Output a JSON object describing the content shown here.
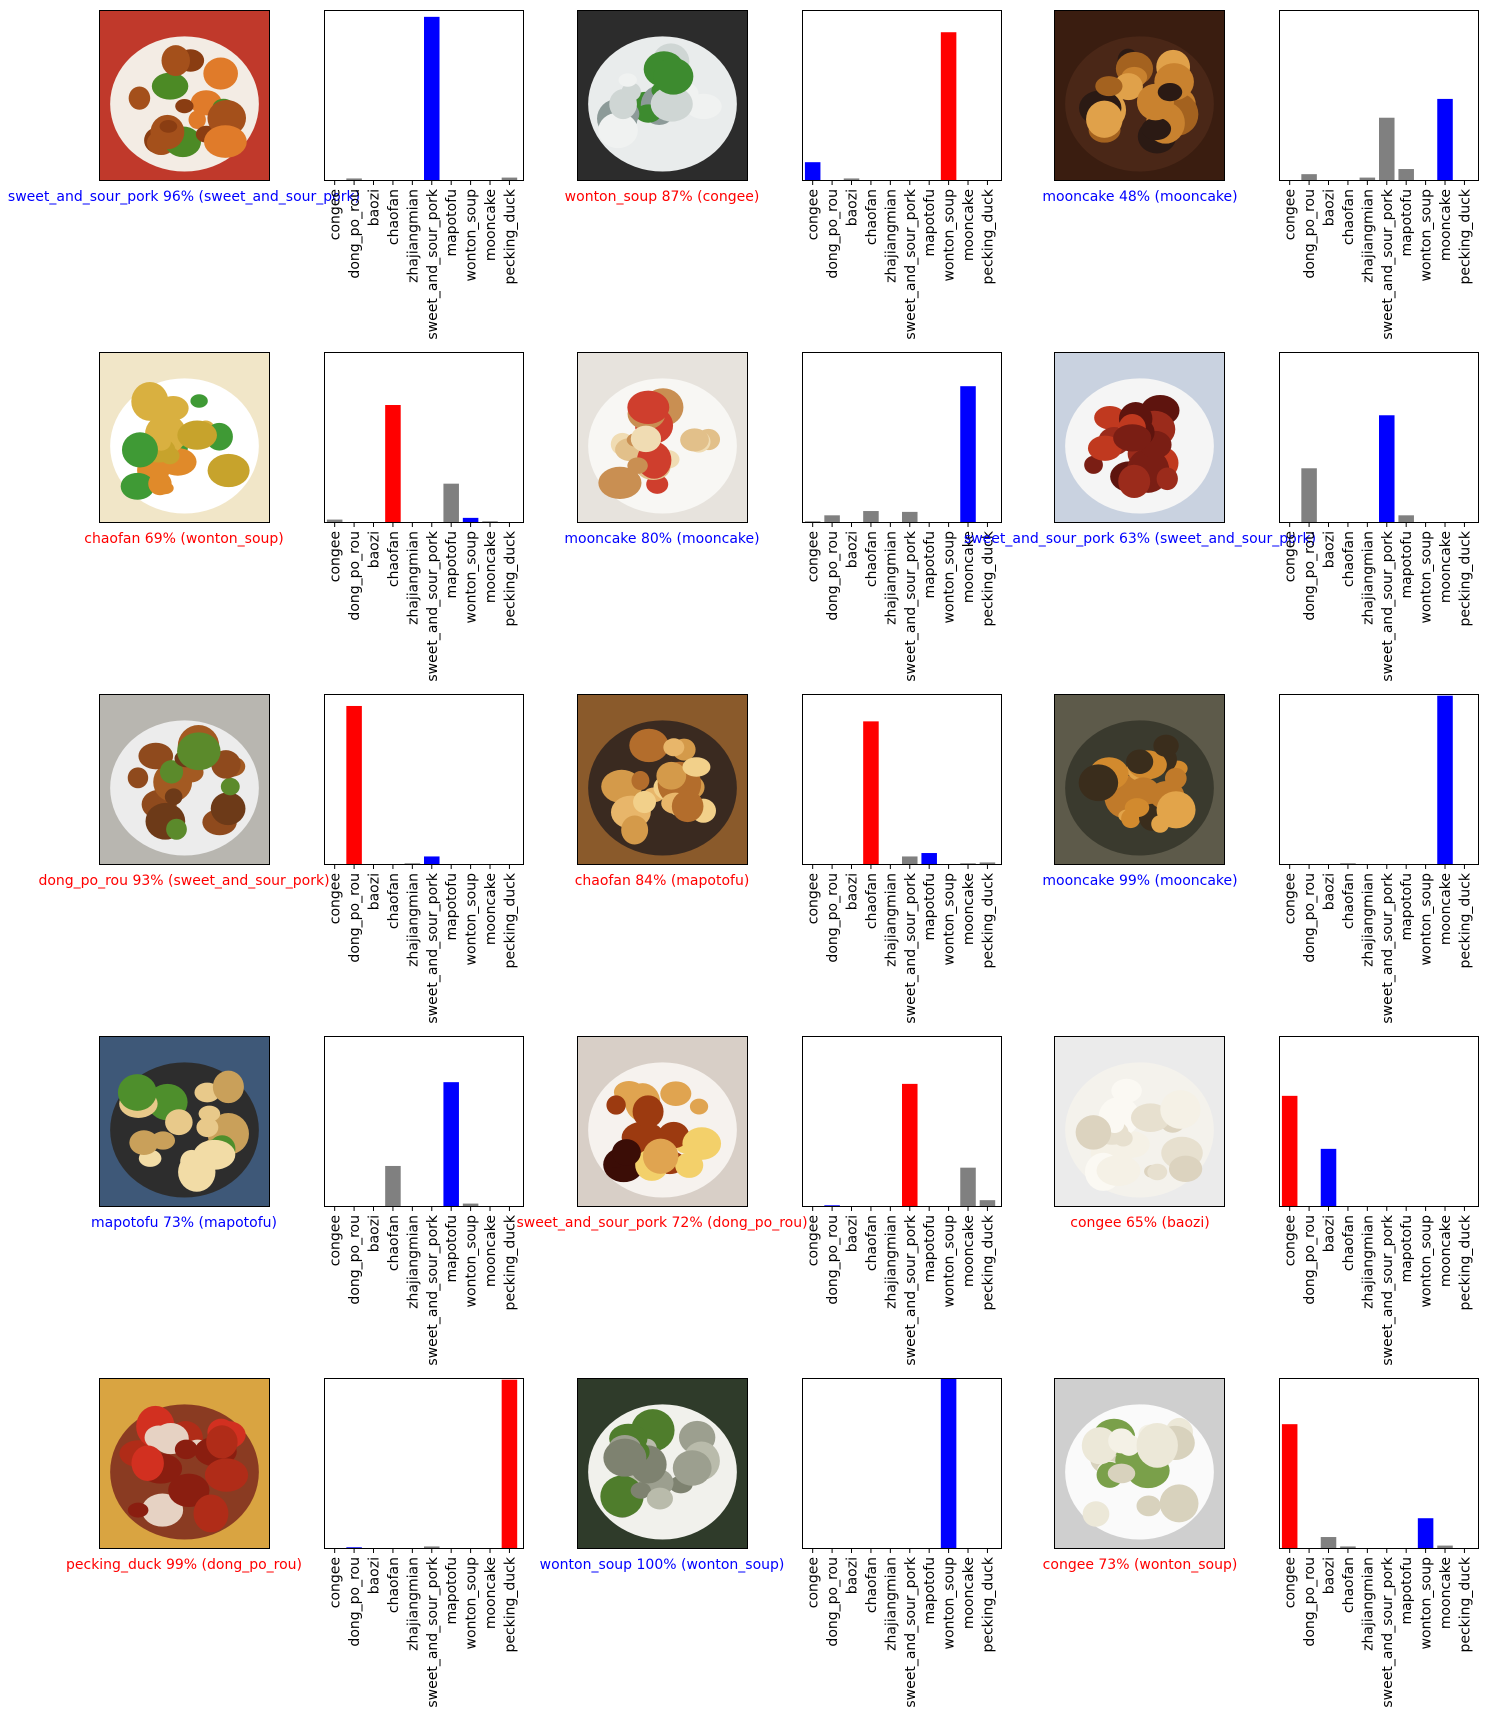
{
  "colors": {
    "correct": "#0000ff",
    "wrong": "#ff0000",
    "other": "#808080",
    "axis": "#000000",
    "background": "#ffffff"
  },
  "chart_data": [
    {
      "type": "bar",
      "categories": [
        "congee",
        "dong_po_rou",
        "baozi",
        "chaofan",
        "zhajiangmian",
        "sweet_and_sour_pork",
        "mapotofu",
        "wonton_soup",
        "mooncake",
        "pecking_duck"
      ],
      "values": [
        0,
        0.015,
        0,
        0,
        0,
        0.96,
        0.005,
        0,
        0,
        0.02
      ],
      "predicted_index": 5,
      "true_index": 5,
      "ylim": [
        0,
        1
      ],
      "caption": "sweet_and_sour_pork 96% (sweet_and_sour_pork)",
      "image": "sweet-and-sour-pork-photo"
    },
    {
      "type": "bar",
      "categories": [
        "congee",
        "dong_po_rou",
        "baozi",
        "chaofan",
        "zhajiangmian",
        "sweet_and_sour_pork",
        "mapotofu",
        "wonton_soup",
        "mooncake",
        "pecking_duck"
      ],
      "values": [
        0.11,
        0,
        0.015,
        0,
        0,
        0,
        0,
        0.87,
        0,
        0
      ],
      "predicted_index": 7,
      "true_index": 0,
      "ylim": [
        0,
        1
      ],
      "caption": "wonton_soup 87% (congee)",
      "image": "congee-bowl-photo"
    },
    {
      "type": "bar",
      "categories": [
        "congee",
        "dong_po_rou",
        "baozi",
        "chaofan",
        "zhajiangmian",
        "sweet_and_sour_pork",
        "mapotofu",
        "wonton_soup",
        "mooncake",
        "pecking_duck"
      ],
      "values": [
        0,
        0.04,
        0,
        0.005,
        0.02,
        0.37,
        0.07,
        0,
        0.48,
        0
      ],
      "predicted_index": 8,
      "true_index": 8,
      "ylim": [
        0,
        1
      ],
      "caption": "mooncake 48% (mooncake)",
      "image": "mooncake-slice-photo"
    },
    {
      "type": "bar",
      "categories": [
        "congee",
        "dong_po_rou",
        "baozi",
        "chaofan",
        "zhajiangmian",
        "sweet_and_sour_pork",
        "mapotofu",
        "wonton_soup",
        "mooncake",
        "pecking_duck"
      ],
      "values": [
        0.02,
        0.005,
        0,
        0.69,
        0,
        0.005,
        0.23,
        0.03,
        0.01,
        0
      ],
      "predicted_index": 3,
      "true_index": 7,
      "ylim": [
        0,
        1
      ],
      "caption": "chaofan 69% (wonton_soup)",
      "image": "wonton-soup-bowl-photo"
    },
    {
      "type": "bar",
      "categories": [
        "congee",
        "dong_po_rou",
        "baozi",
        "chaofan",
        "zhajiangmian",
        "sweet_and_sour_pork",
        "mapotofu",
        "wonton_soup",
        "mooncake",
        "pecking_duck"
      ],
      "values": [
        0.01,
        0.045,
        0,
        0.07,
        0,
        0.065,
        0,
        0,
        0.8,
        0.005
      ],
      "predicted_index": 8,
      "true_index": 8,
      "ylim": [
        0,
        1
      ],
      "caption": "mooncake 80% (mooncake)",
      "image": "mooncake-buns-photo"
    },
    {
      "type": "bar",
      "categories": [
        "congee",
        "dong_po_rou",
        "baozi",
        "chaofan",
        "zhajiangmian",
        "sweet_and_sour_pork",
        "mapotofu",
        "wonton_soup",
        "mooncake",
        "pecking_duck"
      ],
      "values": [
        0,
        0.32,
        0,
        0,
        0,
        0.63,
        0.045,
        0,
        0,
        0
      ],
      "predicted_index": 5,
      "true_index": 5,
      "ylim": [
        0,
        1
      ],
      "caption": "sweet_and_sour_pork 63% (sweet_and_sour_pork)",
      "image": "glazed-pork-plate-photo"
    },
    {
      "type": "bar",
      "categories": [
        "congee",
        "dong_po_rou",
        "baozi",
        "chaofan",
        "zhajiangmian",
        "sweet_and_sour_pork",
        "mapotofu",
        "wonton_soup",
        "mooncake",
        "pecking_duck"
      ],
      "values": [
        0,
        0.93,
        0,
        0,
        0.01,
        0.05,
        0,
        0,
        0,
        0
      ],
      "predicted_index": 1,
      "true_index": 5,
      "ylim": [
        0,
        1
      ],
      "caption": "dong_po_rou 93% (sweet_and_sour_pork)",
      "image": "pork-lettuce-plate-photo"
    },
    {
      "type": "bar",
      "categories": [
        "congee",
        "dong_po_rou",
        "baozi",
        "chaofan",
        "zhajiangmian",
        "sweet_and_sour_pork",
        "mapotofu",
        "wonton_soup",
        "mooncake",
        "pecking_duck"
      ],
      "values": [
        0,
        0,
        0,
        0.84,
        0,
        0.05,
        0.07,
        0,
        0.01,
        0.015
      ],
      "predicted_index": 3,
      "true_index": 6,
      "ylim": [
        0,
        1
      ],
      "caption": "chaofan 84% (mapotofu)",
      "image": "mapotofu-pan-photo"
    },
    {
      "type": "bar",
      "categories": [
        "congee",
        "dong_po_rou",
        "baozi",
        "chaofan",
        "zhajiangmian",
        "sweet_and_sour_pork",
        "mapotofu",
        "wonton_soup",
        "mooncake",
        "pecking_duck"
      ],
      "values": [
        0,
        0,
        0,
        0.01,
        0,
        0,
        0,
        0,
        0.99,
        0
      ],
      "predicted_index": 8,
      "true_index": 8,
      "ylim": [
        0,
        1
      ],
      "caption": "mooncake 99% (mooncake)",
      "image": "mooncake-cut-photo"
    },
    {
      "type": "bar",
      "categories": [
        "congee",
        "dong_po_rou",
        "baozi",
        "chaofan",
        "zhajiangmian",
        "sweet_and_sour_pork",
        "mapotofu",
        "wonton_soup",
        "mooncake",
        "pecking_duck"
      ],
      "values": [
        0,
        0,
        0,
        0.24,
        0,
        0,
        0.73,
        0.02,
        0,
        0
      ],
      "predicted_index": 6,
      "true_index": 6,
      "ylim": [
        0,
        1
      ],
      "caption": "mapotofu 73% (mapotofu)",
      "image": "mapotofu-dish-photo"
    },
    {
      "type": "bar",
      "categories": [
        "congee",
        "dong_po_rou",
        "baozi",
        "chaofan",
        "zhajiangmian",
        "sweet_and_sour_pork",
        "mapotofu",
        "wonton_soup",
        "mooncake",
        "pecking_duck"
      ],
      "values": [
        0,
        0.01,
        0,
        0,
        0,
        0.72,
        0,
        0,
        0.23,
        0.04
      ],
      "predicted_index": 5,
      "true_index": 1,
      "ylim": [
        0,
        1
      ],
      "caption": "sweet_and_sour_pork 72% (dong_po_rou)",
      "image": "braised-pork-cubes-photo"
    },
    {
      "type": "bar",
      "categories": [
        "congee",
        "dong_po_rou",
        "baozi",
        "chaofan",
        "zhajiangmian",
        "sweet_and_sour_pork",
        "mapotofu",
        "wonton_soup",
        "mooncake",
        "pecking_duck"
      ],
      "values": [
        0.65,
        0,
        0.34,
        0,
        0,
        0,
        0,
        0.005,
        0,
        0
      ],
      "predicted_index": 0,
      "true_index": 2,
      "ylim": [
        0,
        1
      ],
      "caption": "congee 65% (baozi)",
      "image": "baozi-bun-photo"
    },
    {
      "type": "bar",
      "categories": [
        "congee",
        "dong_po_rou",
        "baozi",
        "chaofan",
        "zhajiangmian",
        "sweet_and_sour_pork",
        "mapotofu",
        "wonton_soup",
        "mooncake",
        "pecking_duck"
      ],
      "values": [
        0,
        0.01,
        0,
        0,
        0,
        0.015,
        0,
        0,
        0.005,
        0.99
      ],
      "predicted_index": 9,
      "true_index": 1,
      "ylim": [
        0,
        1
      ],
      "caption": "pecking_duck 99% (dong_po_rou)",
      "image": "pork-vs-pots-photo"
    },
    {
      "type": "bar",
      "categories": [
        "congee",
        "dong_po_rou",
        "baozi",
        "chaofan",
        "zhajiangmian",
        "sweet_and_sour_pork",
        "mapotofu",
        "wonton_soup",
        "mooncake",
        "pecking_duck"
      ],
      "values": [
        0,
        0,
        0.005,
        0,
        0,
        0,
        0,
        1.0,
        0,
        0
      ],
      "predicted_index": 7,
      "true_index": 7,
      "ylim": [
        0,
        1
      ],
      "caption": "wonton_soup 100% (wonton_soup)",
      "image": "wonton-soup-dumplings-photo"
    },
    {
      "type": "bar",
      "categories": [
        "congee",
        "dong_po_rou",
        "baozi",
        "chaofan",
        "zhajiangmian",
        "sweet_and_sour_pork",
        "mapotofu",
        "wonton_soup",
        "mooncake",
        "pecking_duck"
      ],
      "values": [
        0.73,
        0,
        0.07,
        0.015,
        0,
        0,
        0,
        0.18,
        0.02,
        0
      ],
      "predicted_index": 0,
      "true_index": 7,
      "ylim": [
        0,
        1
      ],
      "caption": "congee 73% (wonton_soup)",
      "image": "wonton-bowl-white-photo"
    }
  ]
}
